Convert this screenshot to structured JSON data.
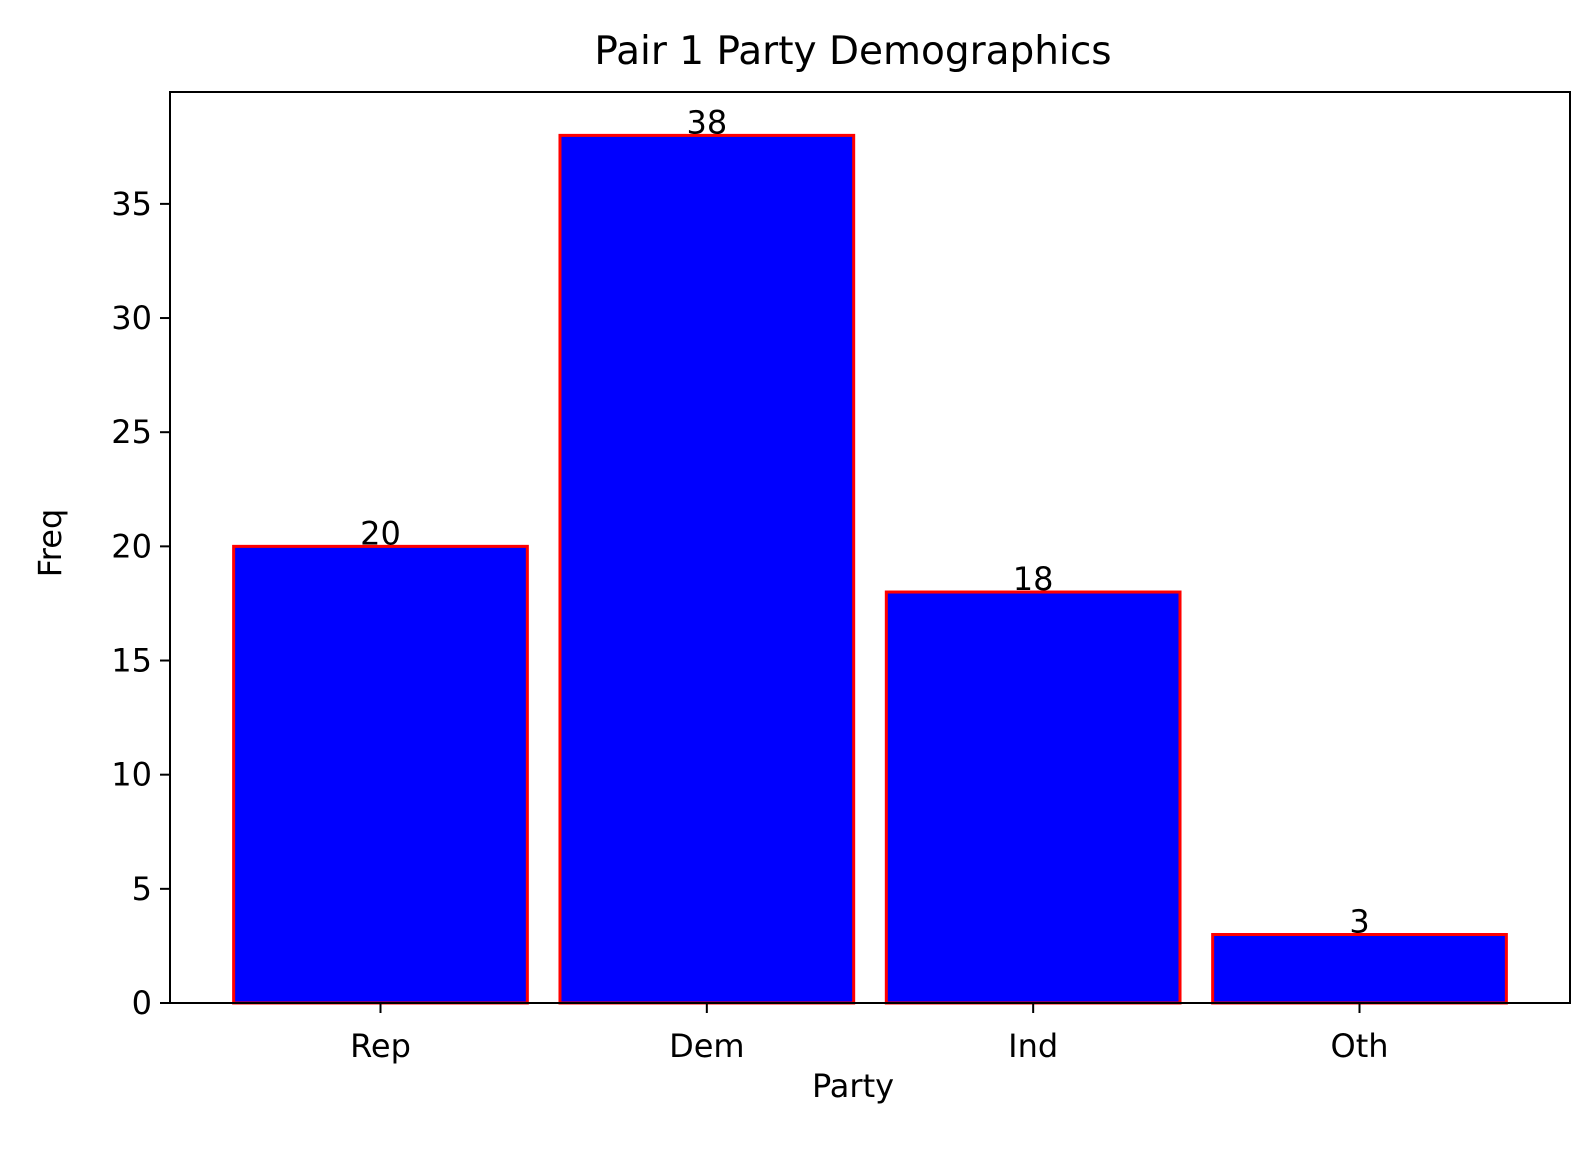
{
  "chart_data": {
    "type": "bar",
    "title": "Pair 1 Party Demographics",
    "xlabel": "Party",
    "ylabel": "Freq",
    "categories": [
      "Rep",
      "Dem",
      "Ind",
      "Oth"
    ],
    "values": [
      20,
      38,
      18,
      3
    ],
    "data_labels": [
      "20",
      "38",
      "18",
      "3"
    ],
    "ylim": [
      0,
      39.9
    ],
    "yticks": [
      0,
      5,
      10,
      15,
      20,
      25,
      30,
      35
    ],
    "ytick_labels": [
      "0",
      "5",
      "10",
      "15",
      "20",
      "25",
      "30",
      "35"
    ],
    "grid": false,
    "legend": "none",
    "colors": {
      "bar_fill": "#0000ff",
      "bar_edge": "#ff0000",
      "axis": "#000000",
      "text": "#000000",
      "background": "#ffffff"
    }
  }
}
